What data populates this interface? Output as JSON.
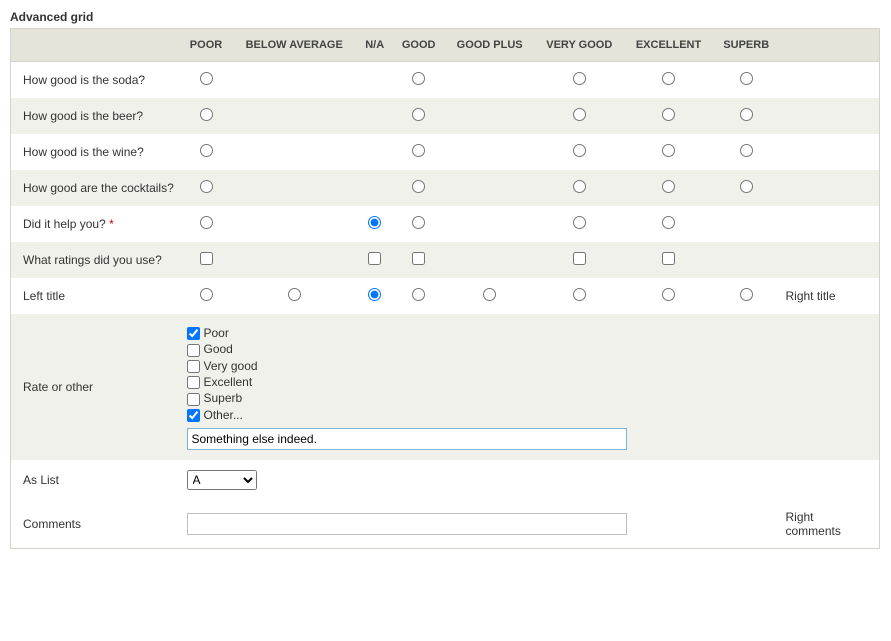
{
  "title": "Advanced grid",
  "columns": {
    "c0": "POOR",
    "c1": "BELOW AVERAGE",
    "c2": "N/A",
    "c3": "GOOD",
    "c4": "GOOD PLUS",
    "c5": "VERY GOOD",
    "c6": "EXCELLENT",
    "c7": "SUPERB"
  },
  "rows": {
    "soda": {
      "label": "How good is the soda?"
    },
    "beer": {
      "label": "How good is the beer?"
    },
    "wine": {
      "label": "How good is the wine?"
    },
    "cocktails": {
      "label": "How good are the cocktails?"
    },
    "help": {
      "label": "Did it help you?",
      "required": "*",
      "selected": 2
    },
    "ratings": {
      "label": "What ratings did you use?"
    },
    "lefttitle": {
      "label": "Left title",
      "right": "Right title",
      "selected": 2
    },
    "rateother": {
      "label": "Rate or other",
      "options": {
        "o0": {
          "label": "Poor",
          "checked": true
        },
        "o1": {
          "label": "Good",
          "checked": false
        },
        "o2": {
          "label": "Very good",
          "checked": false
        },
        "o3": {
          "label": "Excellent",
          "checked": false
        },
        "o4": {
          "label": "Superb",
          "checked": false
        },
        "o5": {
          "label": "Other...",
          "checked": true
        }
      },
      "other_value": "Something else indeed."
    },
    "aslist": {
      "label": "As List",
      "value": "A"
    },
    "comments": {
      "label": "Comments",
      "right": "Right comments",
      "value": ""
    }
  }
}
